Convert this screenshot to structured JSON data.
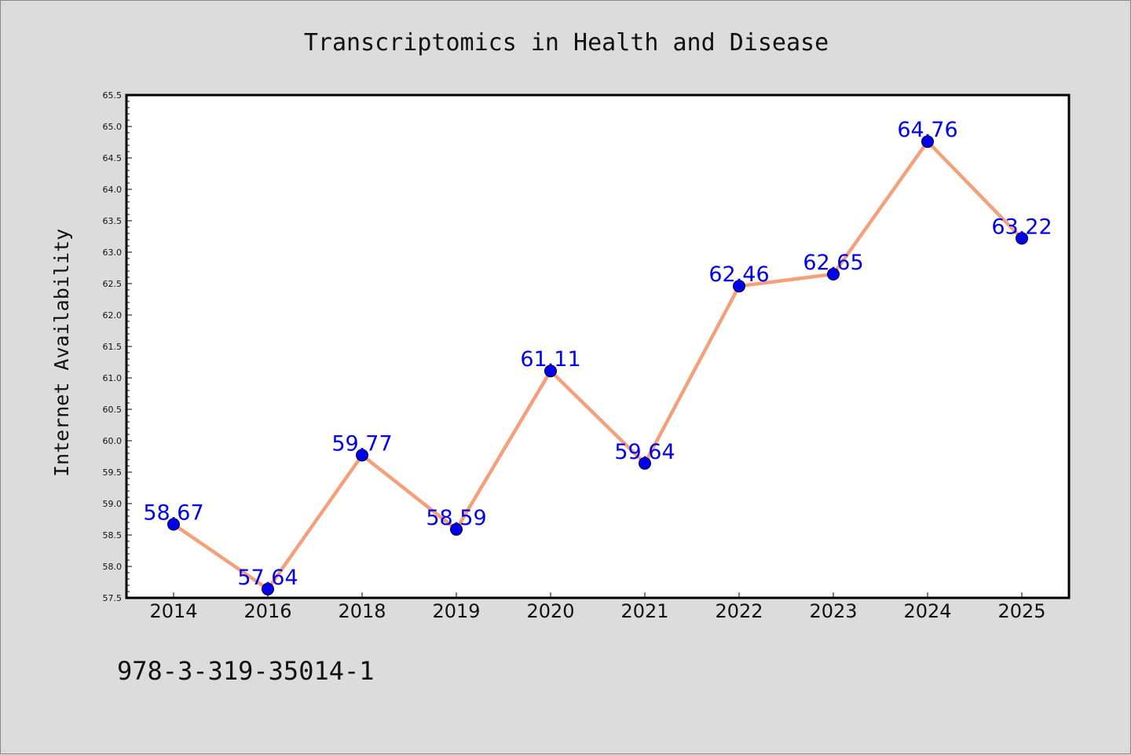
{
  "chart_data": {
    "type": "line",
    "title": "Transcriptomics in Health and Disease",
    "xlabel": "",
    "ylabel": "Internet Availability",
    "categories": [
      "2014",
      "2016",
      "2018",
      "2019",
      "2020",
      "2021",
      "2022",
      "2023",
      "2024",
      "2025"
    ],
    "values": [
      58.67,
      57.64,
      59.77,
      58.59,
      61.11,
      59.64,
      62.46,
      62.65,
      64.76,
      63.22
    ],
    "data_labels": [
      "58.67",
      "57.64",
      "59.77",
      "58.59",
      "61.11",
      "59.64",
      "62.46",
      "62.65",
      "64.76",
      "63.22"
    ],
    "ylim": [
      57.5,
      65.5
    ],
    "yticks": [
      "57.5",
      "58.0",
      "58.5",
      "59.0",
      "59.5",
      "60.0",
      "60.5",
      "61.0",
      "61.5",
      "62.0",
      "62.5",
      "63.0",
      "63.5",
      "64.0",
      "64.5",
      "65.0",
      "65.5"
    ],
    "grid": false,
    "legend": "none",
    "colors": {
      "line": "#f4a07a",
      "marker": "#0000ee",
      "label": "#0000ee",
      "plot_background": "#ffffff",
      "figure_background": "#dcdcdc"
    }
  },
  "footer": {
    "isbn": "978-3-319-35014-1"
  }
}
